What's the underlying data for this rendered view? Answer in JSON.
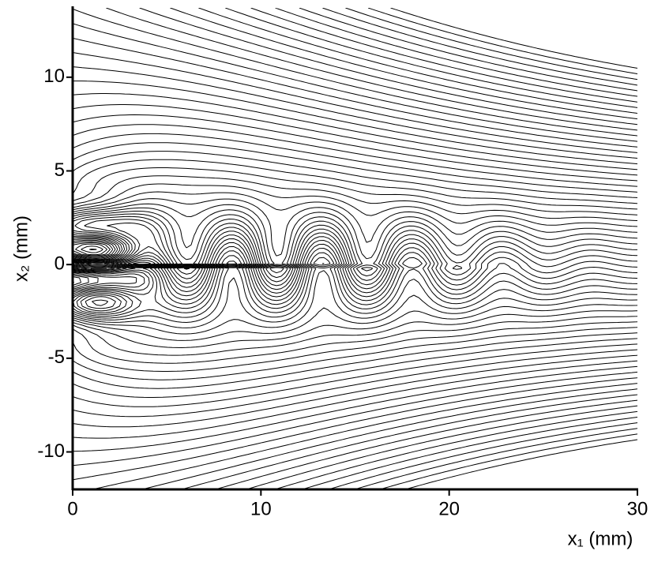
{
  "chart_data": {
    "type": "contour",
    "x_label": "x₁ (mm)",
    "y_label": "x₂ (mm)",
    "xlim": [
      0,
      30
    ],
    "xticks": [
      0,
      10,
      20,
      30
    ],
    "ylim": [
      -12,
      13.7
    ],
    "yticks": [
      -10,
      -5,
      0,
      5,
      10
    ],
    "color": "#000000"
  }
}
